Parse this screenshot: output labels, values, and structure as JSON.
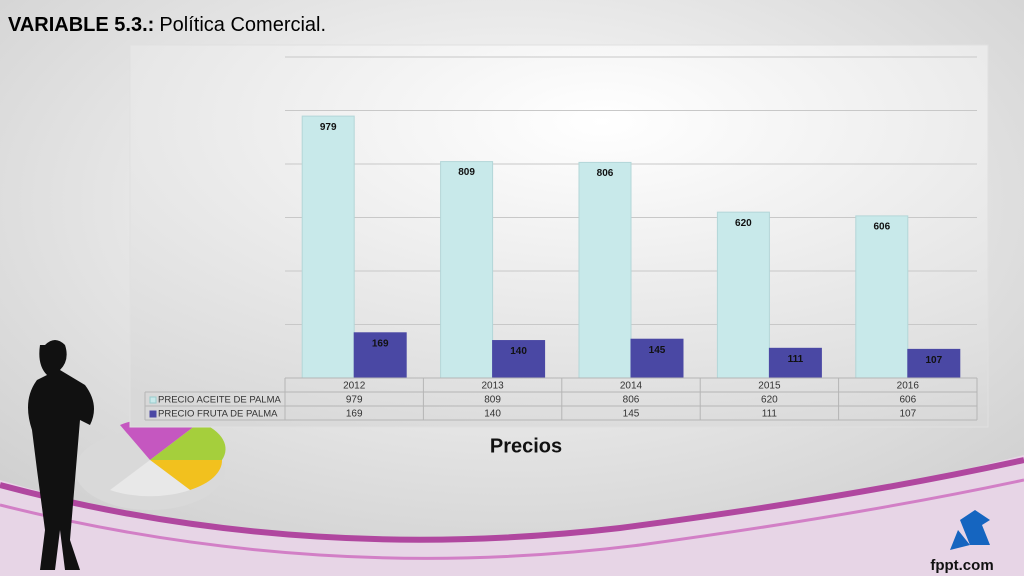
{
  "slide": {
    "title_label": "VARIABLE 5.3.:",
    "title_text": "Política Comercial.",
    "footer": "fppt.com"
  },
  "chart_data": {
    "type": "bar",
    "title": "Precios",
    "categories": [
      "2012",
      "2013",
      "2014",
      "2015",
      "2016"
    ],
    "series": [
      {
        "name": "PRECIO ACEITE DE PALMA",
        "color": "#c8e9ea",
        "values": [
          979,
          809,
          806,
          620,
          606
        ]
      },
      {
        "name": "PRECIO FRUTA DE PALMA",
        "color": "#4a48a4",
        "values": [
          169,
          140,
          145,
          111,
          107
        ]
      }
    ],
    "ylim": [
      0,
      1200
    ],
    "yticks": [
      0,
      200,
      400,
      600,
      800,
      1000,
      1200
    ],
    "grid": true,
    "data_table": true
  }
}
